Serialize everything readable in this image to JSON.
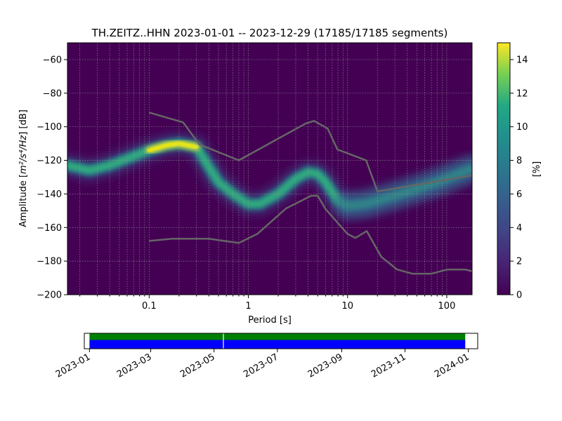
{
  "chart_data": [
    {
      "type": "heatmap",
      "title": "TH.ZEITZ..HHN   2023-01-01 -- 2023-12-29  (17185/17185 segments)",
      "xlabel": "Period [s]",
      "xscale": "log",
      "xlim": [
        0.015,
        180
      ],
      "xticks": [
        {
          "value": 0.1,
          "label": "0.1"
        },
        {
          "value": 1,
          "label": "1"
        },
        {
          "value": 10,
          "label": "10"
        },
        {
          "value": 100,
          "label": "100"
        }
      ],
      "ylabel_main": "Amplitude [",
      "ylabel_math": "m²/s⁴/Hz",
      "ylabel_end": "] [dB]",
      "ylim": [
        -200,
        -50
      ],
      "yticks": [
        -60,
        -80,
        -100,
        -120,
        -140,
        -160,
        -180,
        -200
      ],
      "grid": true,
      "colormap": "viridis",
      "colorbar": {
        "label": "[%]",
        "range": [
          0,
          15
        ],
        "ticks": [
          0,
          2,
          4,
          6,
          8,
          10,
          12,
          14
        ]
      },
      "ppsd_mode": [
        [
          0.015,
          -123
        ],
        [
          0.025,
          -126
        ],
        [
          0.04,
          -123
        ],
        [
          0.06,
          -119
        ],
        [
          0.1,
          -114
        ],
        [
          0.15,
          -111
        ],
        [
          0.2,
          -110
        ],
        [
          0.3,
          -112
        ],
        [
          0.4,
          -124
        ],
        [
          0.5,
          -133
        ],
        [
          0.7,
          -140
        ],
        [
          1.0,
          -146
        ],
        [
          1.3,
          -146
        ],
        [
          2.0,
          -140
        ],
        [
          3.0,
          -131
        ],
        [
          4.0,
          -127
        ],
        [
          5.0,
          -128
        ],
        [
          6.0,
          -133
        ],
        [
          8.0,
          -144
        ],
        [
          10.0,
          -147
        ],
        [
          15.0,
          -146
        ],
        [
          20.0,
          -144
        ],
        [
          30.0,
          -141
        ],
        [
          50.0,
          -137
        ],
        [
          80.0,
          -133
        ],
        [
          120.0,
          -129
        ],
        [
          180.0,
          -125
        ]
      ],
      "nhnm": [
        [
          0.1,
          -91.5
        ],
        [
          0.22,
          -97.4
        ],
        [
          0.32,
          -110.5
        ],
        [
          0.8,
          -120
        ],
        [
          3.8,
          -98
        ],
        [
          4.6,
          -96.5
        ],
        [
          6.3,
          -101
        ],
        [
          7.9,
          -113.5
        ],
        [
          15.4,
          -120
        ],
        [
          20,
          -138.5
        ],
        [
          354.8,
          -126
        ]
      ],
      "nlnm": [
        [
          0.1,
          -168
        ],
        [
          0.17,
          -166.7
        ],
        [
          0.4,
          -166.7
        ],
        [
          0.8,
          -169.2
        ],
        [
          1.24,
          -163.7
        ],
        [
          2.4,
          -148.6
        ],
        [
          4.3,
          -141.1
        ],
        [
          5.0,
          -141.1
        ],
        [
          6.0,
          -149
        ],
        [
          10.0,
          -163.8
        ],
        [
          12.0,
          -166.2
        ],
        [
          15.6,
          -162.1
        ],
        [
          21.9,
          -177.5
        ],
        [
          31.6,
          -185
        ],
        [
          45,
          -187.5
        ],
        [
          70,
          -187.5
        ],
        [
          101,
          -185
        ],
        [
          154,
          -185
        ],
        [
          180,
          -186
        ]
      ]
    },
    {
      "type": "timeline",
      "xlim": [
        "2022-12-27",
        "2024-01-10"
      ],
      "coverage_start": "2023-01-01",
      "coverage_end": "2023-12-29",
      "gap": "2023-05-10",
      "xticks": [
        "2023-01",
        "2023-03",
        "2023-05",
        "2023-07",
        "2023-09",
        "2023-11",
        "2024-01"
      ],
      "colors": {
        "data": "#0000ff",
        "processed": "#008000"
      }
    }
  ]
}
